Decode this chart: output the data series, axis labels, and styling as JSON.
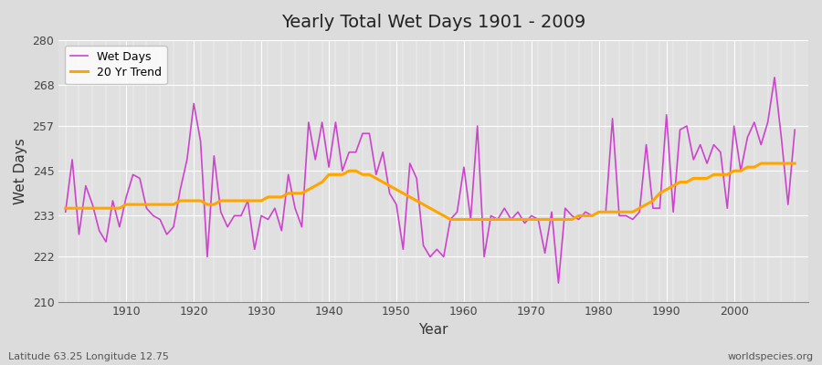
{
  "title": "Yearly Total Wet Days 1901 - 2009",
  "xlabel": "Year",
  "ylabel": "Wet Days",
  "footnote_left": "Latitude 63.25 Longitude 12.75",
  "footnote_right": "worldspecies.org",
  "line_color": "#CC44CC",
  "trend_color": "#FFA500",
  "bg_color": "#EAEAEA",
  "plot_bg_color": "#E8E8E8",
  "grid_color": "#FFFFFF",
  "ylim": [
    210,
    280
  ],
  "yticks": [
    210,
    222,
    233,
    245,
    257,
    268,
    280
  ],
  "xticks": [
    1910,
    1920,
    1930,
    1940,
    1950,
    1960,
    1970,
    1980,
    1990,
    2000
  ],
  "years": [
    1901,
    1902,
    1903,
    1904,
    1905,
    1906,
    1907,
    1908,
    1909,
    1910,
    1911,
    1912,
    1913,
    1914,
    1915,
    1916,
    1917,
    1918,
    1919,
    1920,
    1921,
    1922,
    1923,
    1924,
    1925,
    1926,
    1927,
    1928,
    1929,
    1930,
    1931,
    1932,
    1933,
    1934,
    1935,
    1936,
    1937,
    1938,
    1939,
    1940,
    1941,
    1942,
    1943,
    1944,
    1945,
    1946,
    1947,
    1948,
    1949,
    1950,
    1951,
    1952,
    1953,
    1954,
    1955,
    1956,
    1957,
    1958,
    1959,
    1960,
    1961,
    1962,
    1963,
    1964,
    1965,
    1966,
    1967,
    1968,
    1969,
    1970,
    1971,
    1972,
    1973,
    1974,
    1975,
    1976,
    1977,
    1978,
    1979,
    1980,
    1981,
    1982,
    1983,
    1984,
    1985,
    1986,
    1987,
    1988,
    1989,
    1990,
    1991,
    1992,
    1993,
    1994,
    1995,
    1996,
    1997,
    1998,
    1999,
    2000,
    2001,
    2002,
    2003,
    2004,
    2005,
    2006,
    2007,
    2008,
    2009
  ],
  "wet_days": [
    234,
    248,
    228,
    241,
    236,
    229,
    226,
    237,
    230,
    238,
    244,
    243,
    235,
    233,
    232,
    228,
    230,
    240,
    248,
    263,
    253,
    222,
    249,
    234,
    230,
    233,
    233,
    237,
    224,
    233,
    232,
    235,
    229,
    244,
    235,
    230,
    258,
    248,
    258,
    246,
    258,
    245,
    250,
    250,
    255,
    255,
    244,
    250,
    239,
    236,
    224,
    247,
    243,
    225,
    222,
    224,
    222,
    232,
    234,
    246,
    232,
    257,
    222,
    233,
    232,
    235,
    232,
    234,
    231,
    233,
    232,
    223,
    234,
    215,
    235,
    233,
    232,
    234,
    233,
    234,
    234,
    259,
    233,
    233,
    232,
    234,
    252,
    235,
    235,
    260,
    234,
    256,
    257,
    248,
    252,
    247,
    252,
    250,
    235,
    257,
    245,
    254,
    258,
    252,
    258,
    270,
    254,
    236,
    256
  ],
  "trend": [
    235,
    235,
    235,
    235,
    235,
    235,
    235,
    235,
    235,
    236,
    236,
    236,
    236,
    236,
    236,
    236,
    236,
    237,
    237,
    237,
    237,
    236,
    236,
    237,
    237,
    237,
    237,
    237,
    237,
    237,
    238,
    238,
    238,
    239,
    239,
    239,
    240,
    241,
    242,
    244,
    244,
    244,
    245,
    245,
    244,
    244,
    243,
    242,
    241,
    240,
    239,
    238,
    237,
    236,
    235,
    234,
    233,
    232,
    232,
    232,
    232,
    232,
    232,
    232,
    232,
    232,
    232,
    232,
    232,
    232,
    232,
    232,
    232,
    232,
    232,
    232,
    233,
    233,
    233,
    234,
    234,
    234,
    234,
    234,
    234,
    235,
    236,
    237,
    239,
    240,
    241,
    242,
    242,
    243,
    243,
    243,
    244,
    244,
    244,
    245,
    245,
    246,
    246,
    247,
    247,
    247,
    247,
    247,
    247
  ]
}
